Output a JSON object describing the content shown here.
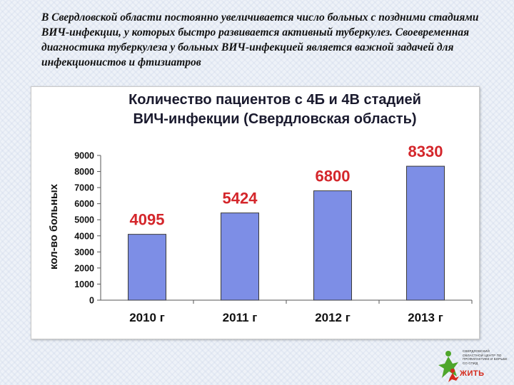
{
  "slide": {
    "heading": "В Свердловской области постоянно увеличивается число больных с поздними стадиями ВИЧ-инфекции, у которых быстро развивается активный туберкулез. Своевременная диагностика туберкулеза у больных ВИЧ-инфекцией является важной задачей для инфекционистов и фтизиатров"
  },
  "logo": {
    "org_text": "Свердловский областной центр по профилактике и борьбе со СПИД",
    "word": "ЖИТЬ",
    "colors": {
      "green": "#4ea62b",
      "red": "#d42a1c",
      "blue": "#2a6fb5"
    }
  },
  "chart_data": {
    "type": "bar",
    "title_lines": [
      "Количество пациентов с 4Б и 4В стадией",
      "ВИЧ-инфекции  (Свердловская область)"
    ],
    "categories": [
      "2010 г",
      "2011 г",
      "2012 г",
      "2013 г"
    ],
    "values": [
      4095,
      5424,
      6800,
      8330
    ],
    "data_labels": [
      "4095",
      "5424",
      "6800",
      "8330"
    ],
    "ylabel": "кол-во больных",
    "xlabel": "",
    "ylim": [
      0,
      9000
    ],
    "yticks": [
      0,
      1000,
      2000,
      3000,
      4000,
      5000,
      6000,
      7000,
      8000,
      9000
    ],
    "grid": false,
    "legend": "none",
    "colors": {
      "bar": "#7d8ee6",
      "bar_edge": "#3a3a3a",
      "label": "#d4262b",
      "title": "#1a1a2e",
      "text": "#111111"
    }
  }
}
